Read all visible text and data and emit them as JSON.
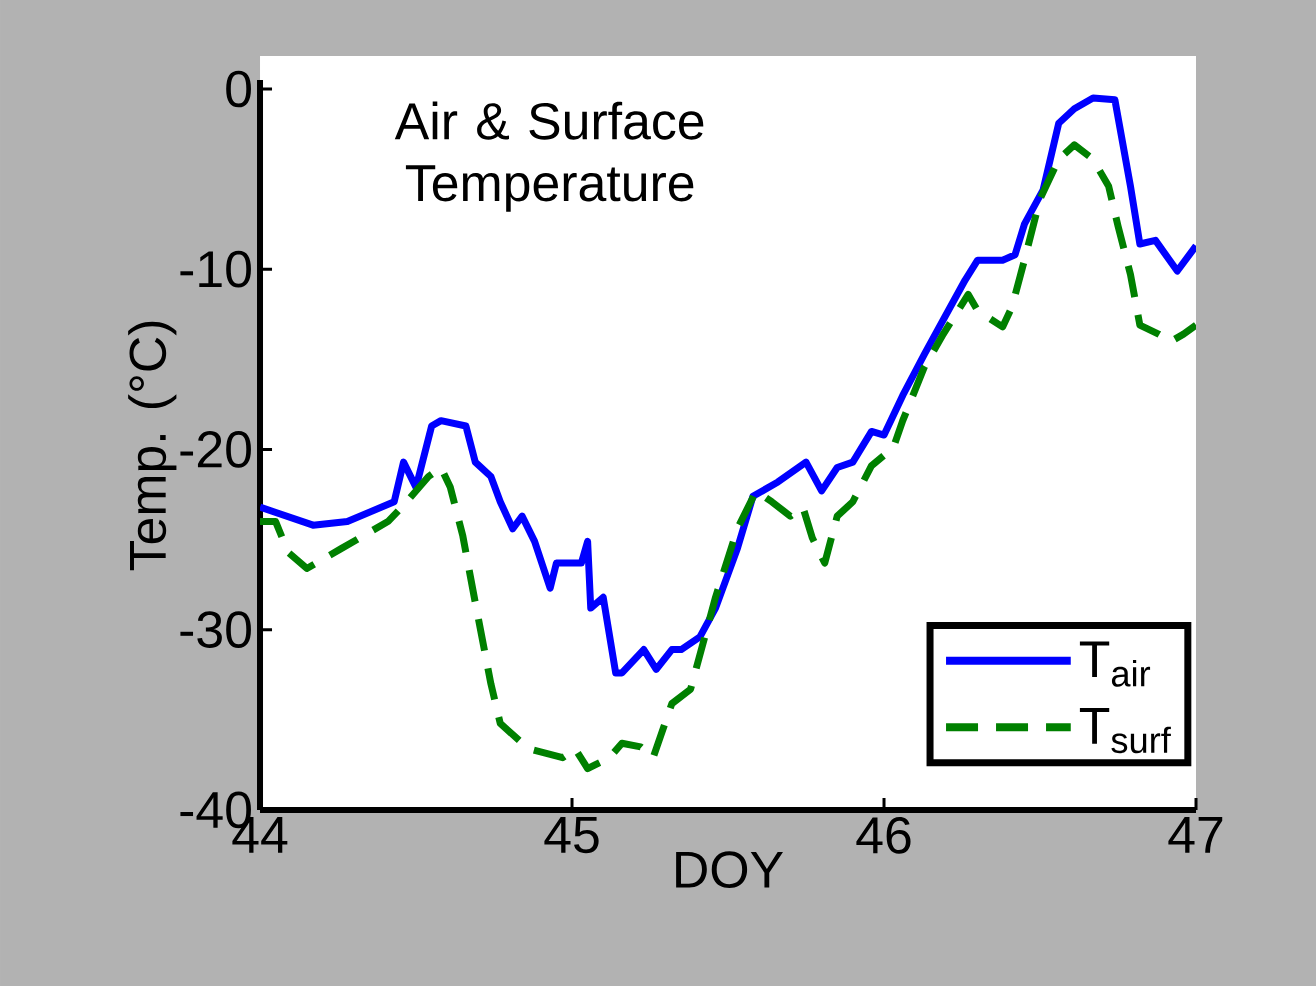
{
  "chart_data": {
    "type": "line",
    "title": "Air & Surface Temperature",
    "xlabel": "DOY",
    "ylabel": "Temp. (°C)",
    "xlim": [
      44,
      47
    ],
    "ylim": [
      -40,
      0.5
    ],
    "xticks": [
      44,
      45,
      46,
      47
    ],
    "yticks": [
      -40,
      -30,
      -20,
      -10,
      0
    ],
    "legend": "bottom right",
    "grid": false,
    "marker": "none",
    "series": [
      {
        "name": "T$_{air}$",
        "color": "#0000ff",
        "line_style": "solid",
        "x": [
          44.0,
          44.17,
          44.28,
          44.43,
          44.46,
          44.5,
          44.55,
          44.58,
          44.66,
          44.69,
          44.74,
          44.77,
          44.81,
          44.84,
          44.88,
          44.93,
          44.95,
          45.03,
          45.05,
          45.06,
          45.1,
          45.14,
          45.16,
          45.23,
          45.27,
          45.32,
          45.35,
          45.41,
          45.46,
          45.53,
          45.58,
          45.66,
          45.75,
          45.8,
          45.85,
          45.9,
          45.96,
          46.0,
          46.06,
          46.13,
          46.19,
          46.26,
          46.3,
          46.38,
          46.42,
          46.45,
          46.51,
          46.56,
          46.61,
          46.67,
          46.74,
          46.79,
          46.82,
          46.87,
          46.94,
          47.0
        ],
        "values": [
          -23.2,
          -24.2,
          -24.0,
          -22.9,
          -20.7,
          -22.1,
          -18.7,
          -18.4,
          -18.7,
          -20.7,
          -21.5,
          -22.9,
          -24.4,
          -23.7,
          -25.1,
          -27.7,
          -26.3,
          -26.3,
          -25.1,
          -28.8,
          -28.2,
          -32.4,
          -32.4,
          -31.1,
          -32.2,
          -31.1,
          -31.1,
          -30.4,
          -28.8,
          -25.5,
          -22.6,
          -21.8,
          -20.7,
          -22.3,
          -21.0,
          -20.7,
          -19.0,
          -19.2,
          -17.0,
          -14.7,
          -12.8,
          -10.6,
          -9.5,
          -9.5,
          -9.2,
          -7.5,
          -5.6,
          -1.9,
          -1.1,
          -0.5,
          -0.6,
          -5.4,
          -8.6,
          -8.4,
          -10.1,
          -8.7
        ]
      },
      {
        "name": "T$_{surf}$",
        "color": "#008000",
        "line_style": "dashed",
        "x": [
          44.0,
          44.05,
          44.09,
          44.15,
          44.26,
          44.35,
          44.41,
          44.46,
          44.54,
          44.58,
          44.61,
          44.65,
          44.69,
          44.74,
          44.77,
          44.86,
          44.97,
          45.01,
          45.05,
          45.12,
          45.16,
          45.22,
          45.26,
          45.32,
          45.38,
          45.46,
          45.53,
          45.59,
          45.64,
          45.7,
          45.74,
          45.77,
          45.81,
          45.85,
          45.9,
          45.96,
          46.03,
          46.06,
          46.13,
          46.19,
          46.27,
          46.3,
          46.38,
          46.41,
          46.45,
          46.5,
          46.56,
          46.61,
          46.67,
          46.72,
          46.75,
          46.79,
          46.82,
          46.88,
          46.92,
          46.96,
          47.0
        ],
        "values": [
          -24.0,
          -24.0,
          -25.7,
          -26.6,
          -25.5,
          -24.6,
          -24.0,
          -23.1,
          -21.5,
          -21.0,
          -22.1,
          -24.8,
          -28.5,
          -33.0,
          -35.2,
          -36.6,
          -37.1,
          -36.6,
          -37.7,
          -37.1,
          -36.3,
          -36.5,
          -37.1,
          -34.1,
          -33.3,
          -28.2,
          -24.4,
          -22.3,
          -22.9,
          -23.7,
          -23.2,
          -24.9,
          -26.3,
          -23.7,
          -22.9,
          -20.9,
          -19.9,
          -18.4,
          -15.4,
          -13.6,
          -11.4,
          -12.3,
          -13.2,
          -12.1,
          -9.5,
          -6.1,
          -3.9,
          -3.1,
          -3.9,
          -5.4,
          -7.6,
          -10.3,
          -13.1,
          -13.6,
          -14.0,
          -13.6,
          -13.1
        ]
      }
    ]
  }
}
